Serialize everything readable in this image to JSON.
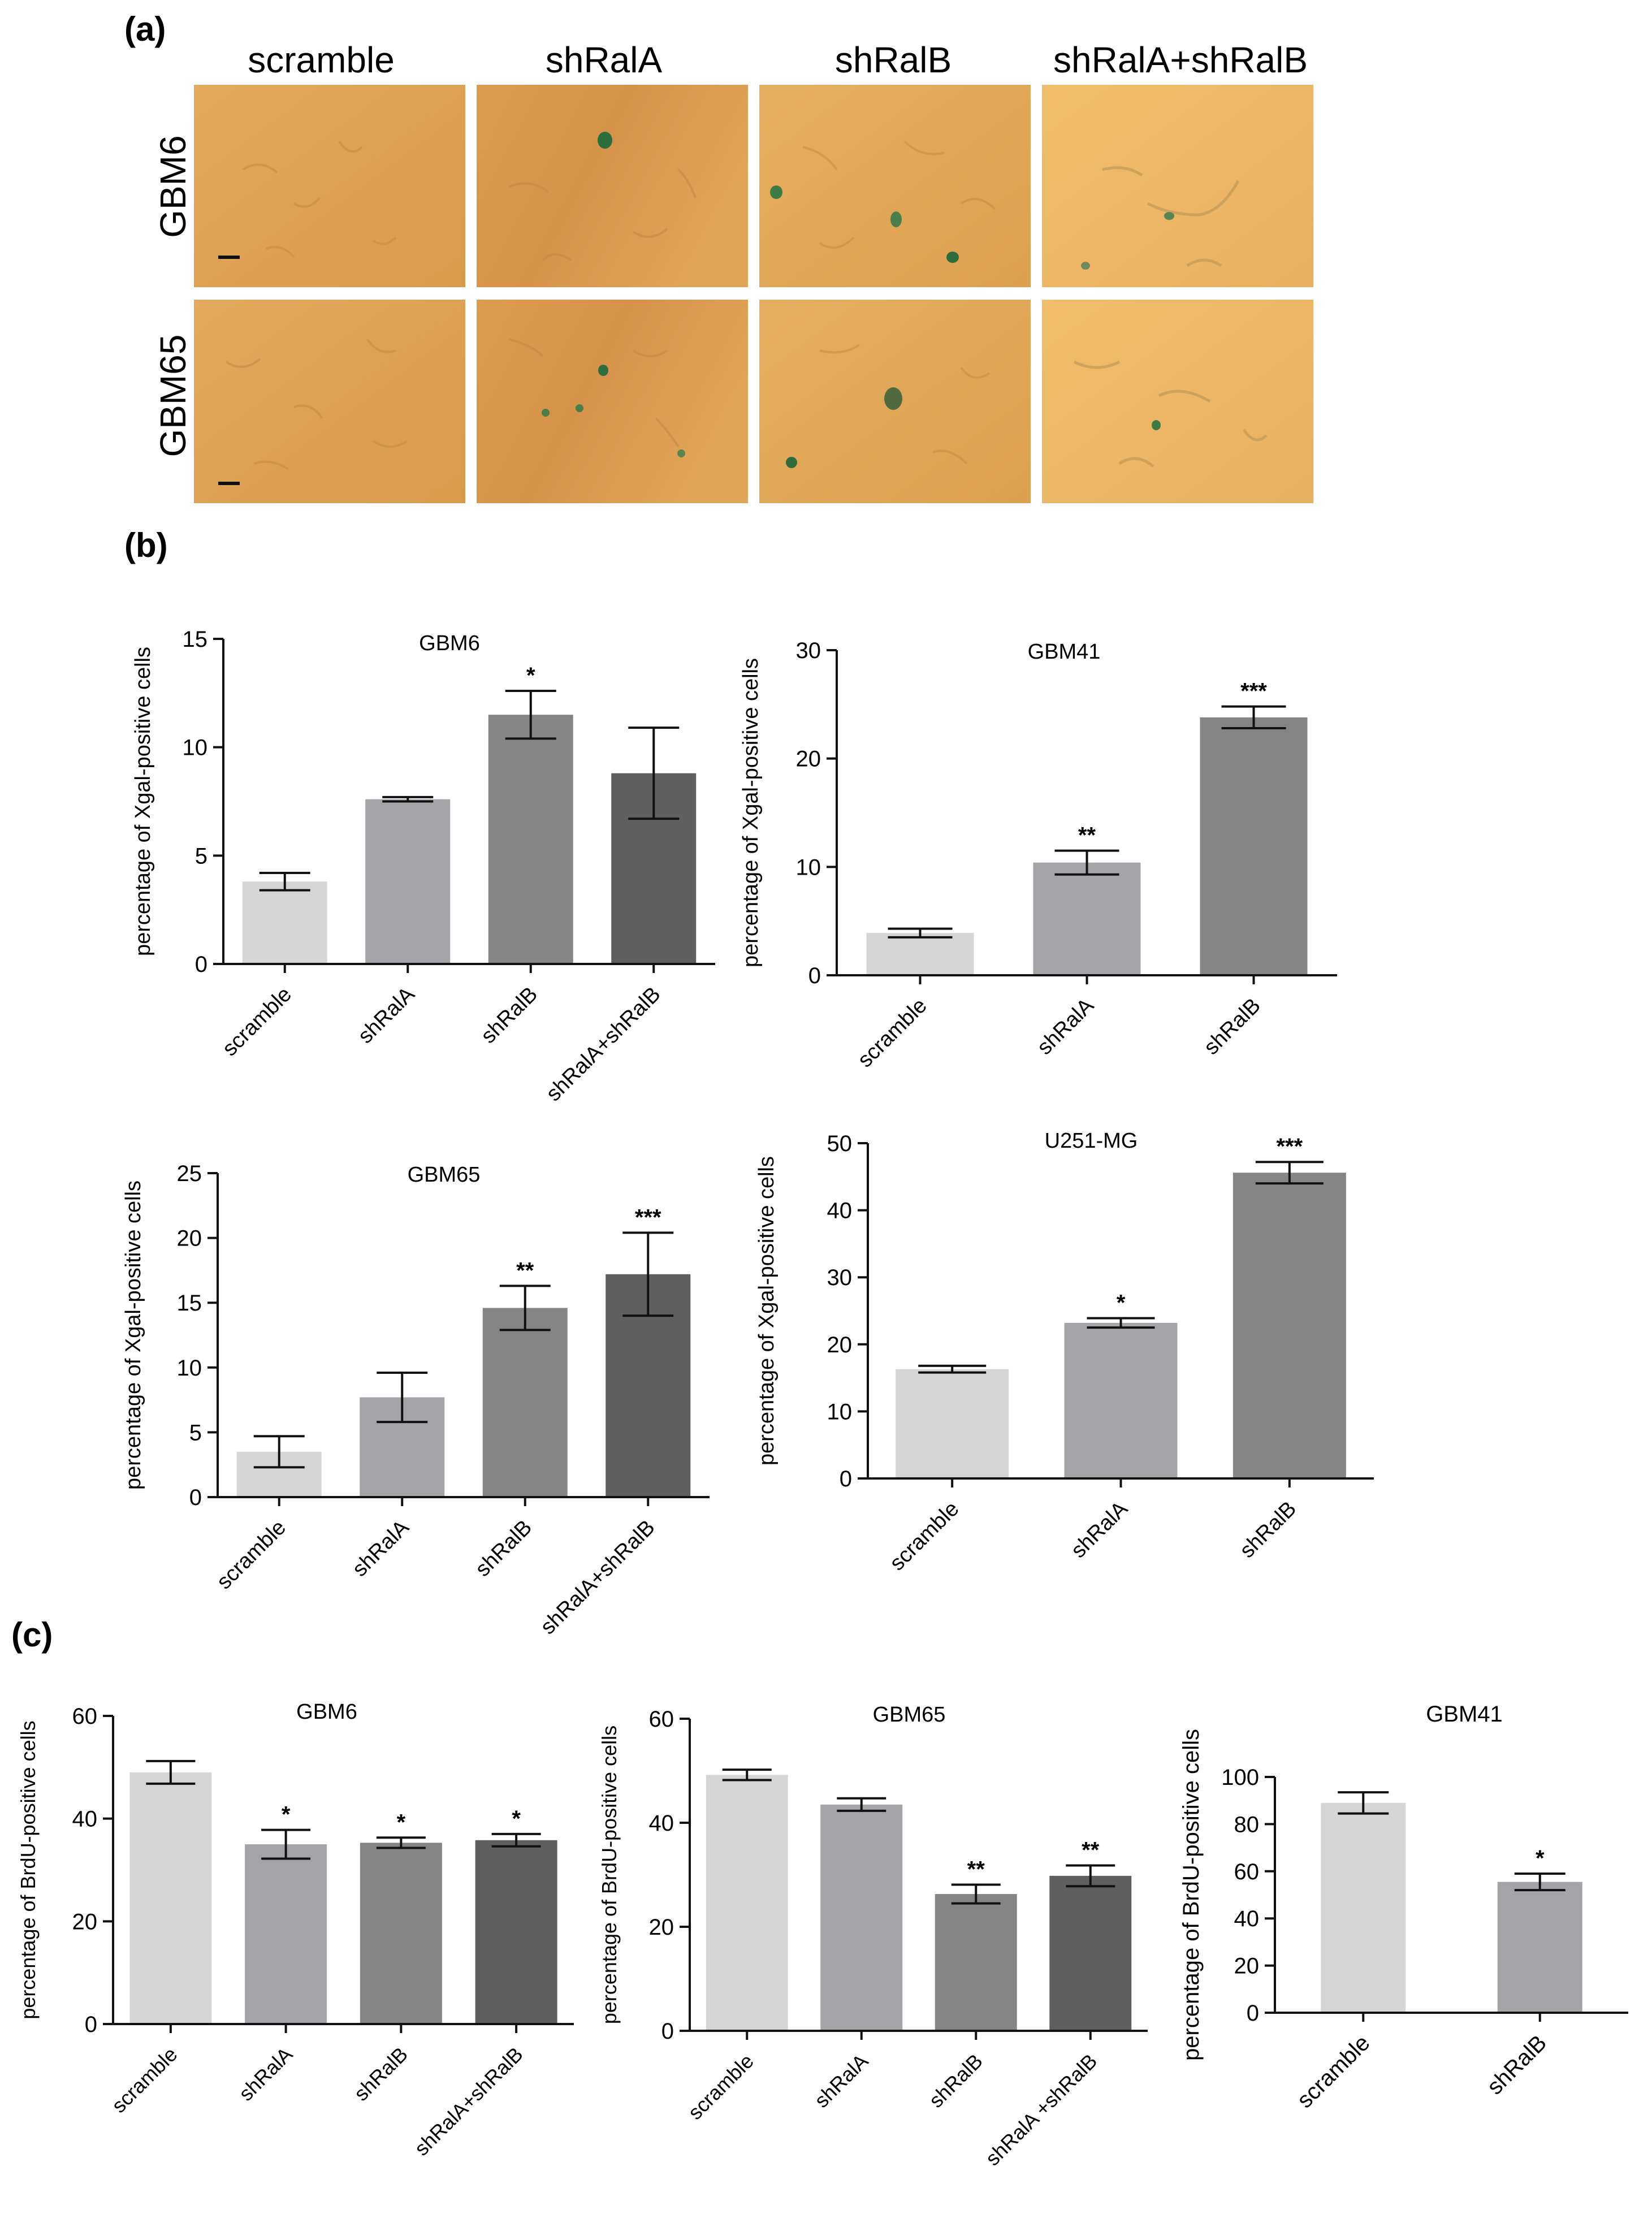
{
  "panel_labels": {
    "a": "(a)",
    "b": "(b)",
    "c": "(c)"
  },
  "micrographs": {
    "columns": [
      "scramble",
      "shRalA",
      "shRalB",
      "shRalA+shRalB"
    ],
    "rows": [
      "GBM6",
      "GBM65"
    ]
  },
  "colors": {
    "bar1": "#d5d5d5",
    "bar2": "#a4a4a8",
    "bar3": "#858585",
    "bar4": "#5f5f5f",
    "tissue": "#e0a85a"
  },
  "chart_data": [
    {
      "id": "b1",
      "type": "bar",
      "title": "GBM6",
      "ylabel": "percentage of Xgal-positive cells",
      "categories": [
        "scramble",
        "shRalA",
        "shRalB",
        "shRalA+shRalB"
      ],
      "values": [
        3.8,
        7.6,
        11.5,
        8.8
      ],
      "errors": [
        0.4,
        0.1,
        1.1,
        2.1
      ],
      "annotations": [
        "",
        "",
        "*",
        ""
      ],
      "ylim": [
        0,
        15
      ],
      "yticks": [
        "0",
        "5",
        "10",
        "15"
      ]
    },
    {
      "id": "b2",
      "type": "bar",
      "title": "GBM41",
      "ylabel": "percentage of Xgal-positive cells",
      "categories": [
        "scramble",
        "shRalA",
        "shRalB"
      ],
      "values": [
        3.9,
        10.4,
        23.8
      ],
      "errors": [
        0.4,
        1.1,
        1.0
      ],
      "annotations": [
        "",
        "**",
        "***"
      ],
      "ylim": [
        0,
        30
      ],
      "yticks": [
        "0",
        "10",
        "20",
        "30"
      ]
    },
    {
      "id": "b3",
      "type": "bar",
      "title": "GBM65",
      "ylabel": "percentage of Xgal-positive cells",
      "categories": [
        "scramble",
        "shRalA",
        "shRalB",
        "shRalA+shRalB"
      ],
      "values": [
        3.5,
        7.7,
        14.6,
        17.2
      ],
      "errors": [
        1.2,
        1.9,
        1.7,
        3.2
      ],
      "annotations": [
        "",
        "",
        "**",
        "***"
      ],
      "ylim": [
        0,
        25
      ],
      "yticks": [
        "0",
        "5",
        "10",
        "15",
        "20",
        "25"
      ]
    },
    {
      "id": "b4",
      "type": "bar",
      "title": "U251-MG",
      "ylabel": "percentage of Xgal-positive cells",
      "categories": [
        "scramble",
        "shRalA",
        "shRalB"
      ],
      "values": [
        16.3,
        23.2,
        45.6
      ],
      "errors": [
        0.5,
        0.7,
        1.6
      ],
      "annotations": [
        "",
        "*",
        "***"
      ],
      "ylim": [
        0,
        50
      ],
      "yticks": [
        "0",
        "10",
        "20",
        "30",
        "40",
        "50"
      ]
    },
    {
      "id": "c1",
      "type": "bar",
      "title": "GBM6",
      "ylabel": "percentage of BrdU-positive cells",
      "categories": [
        "scramble",
        "shRalA",
        "shRalB",
        "shRalA+shRalB"
      ],
      "values": [
        49,
        35,
        35.3,
        35.8
      ],
      "errors": [
        2.2,
        2.8,
        1.0,
        1.2
      ],
      "annotations": [
        "",
        "*",
        "*",
        "*"
      ],
      "ylim": [
        0,
        60
      ],
      "yticks": [
        "0",
        "20",
        "40",
        "60"
      ]
    },
    {
      "id": "c2",
      "type": "bar",
      "title": "GBM65",
      "ylabel": "percentage of BrdU-positive cells",
      "categories": [
        "scramble",
        "shRalA",
        "shRalB",
        "shRalA +shRalB"
      ],
      "values": [
        49.2,
        43.5,
        26.3,
        29.8
      ],
      "errors": [
        1.0,
        1.2,
        1.8,
        2.0
      ],
      "annotations": [
        "",
        "",
        "**",
        "**"
      ],
      "ylim": [
        0,
        60
      ],
      "yticks": [
        "0",
        "20",
        "40",
        "60"
      ]
    },
    {
      "id": "c3",
      "type": "bar",
      "title": "GBM41",
      "ylabel": "percentage of BrdU-positive cells",
      "categories": [
        "scramble",
        "shRalB"
      ],
      "values": [
        89,
        55.5
      ],
      "errors": [
        4.5,
        3.5
      ],
      "annotations": [
        "",
        "*"
      ],
      "ylim": [
        0,
        100
      ],
      "yticks": [
        "0",
        "20",
        "40",
        "60",
        "80",
        "100"
      ]
    }
  ]
}
